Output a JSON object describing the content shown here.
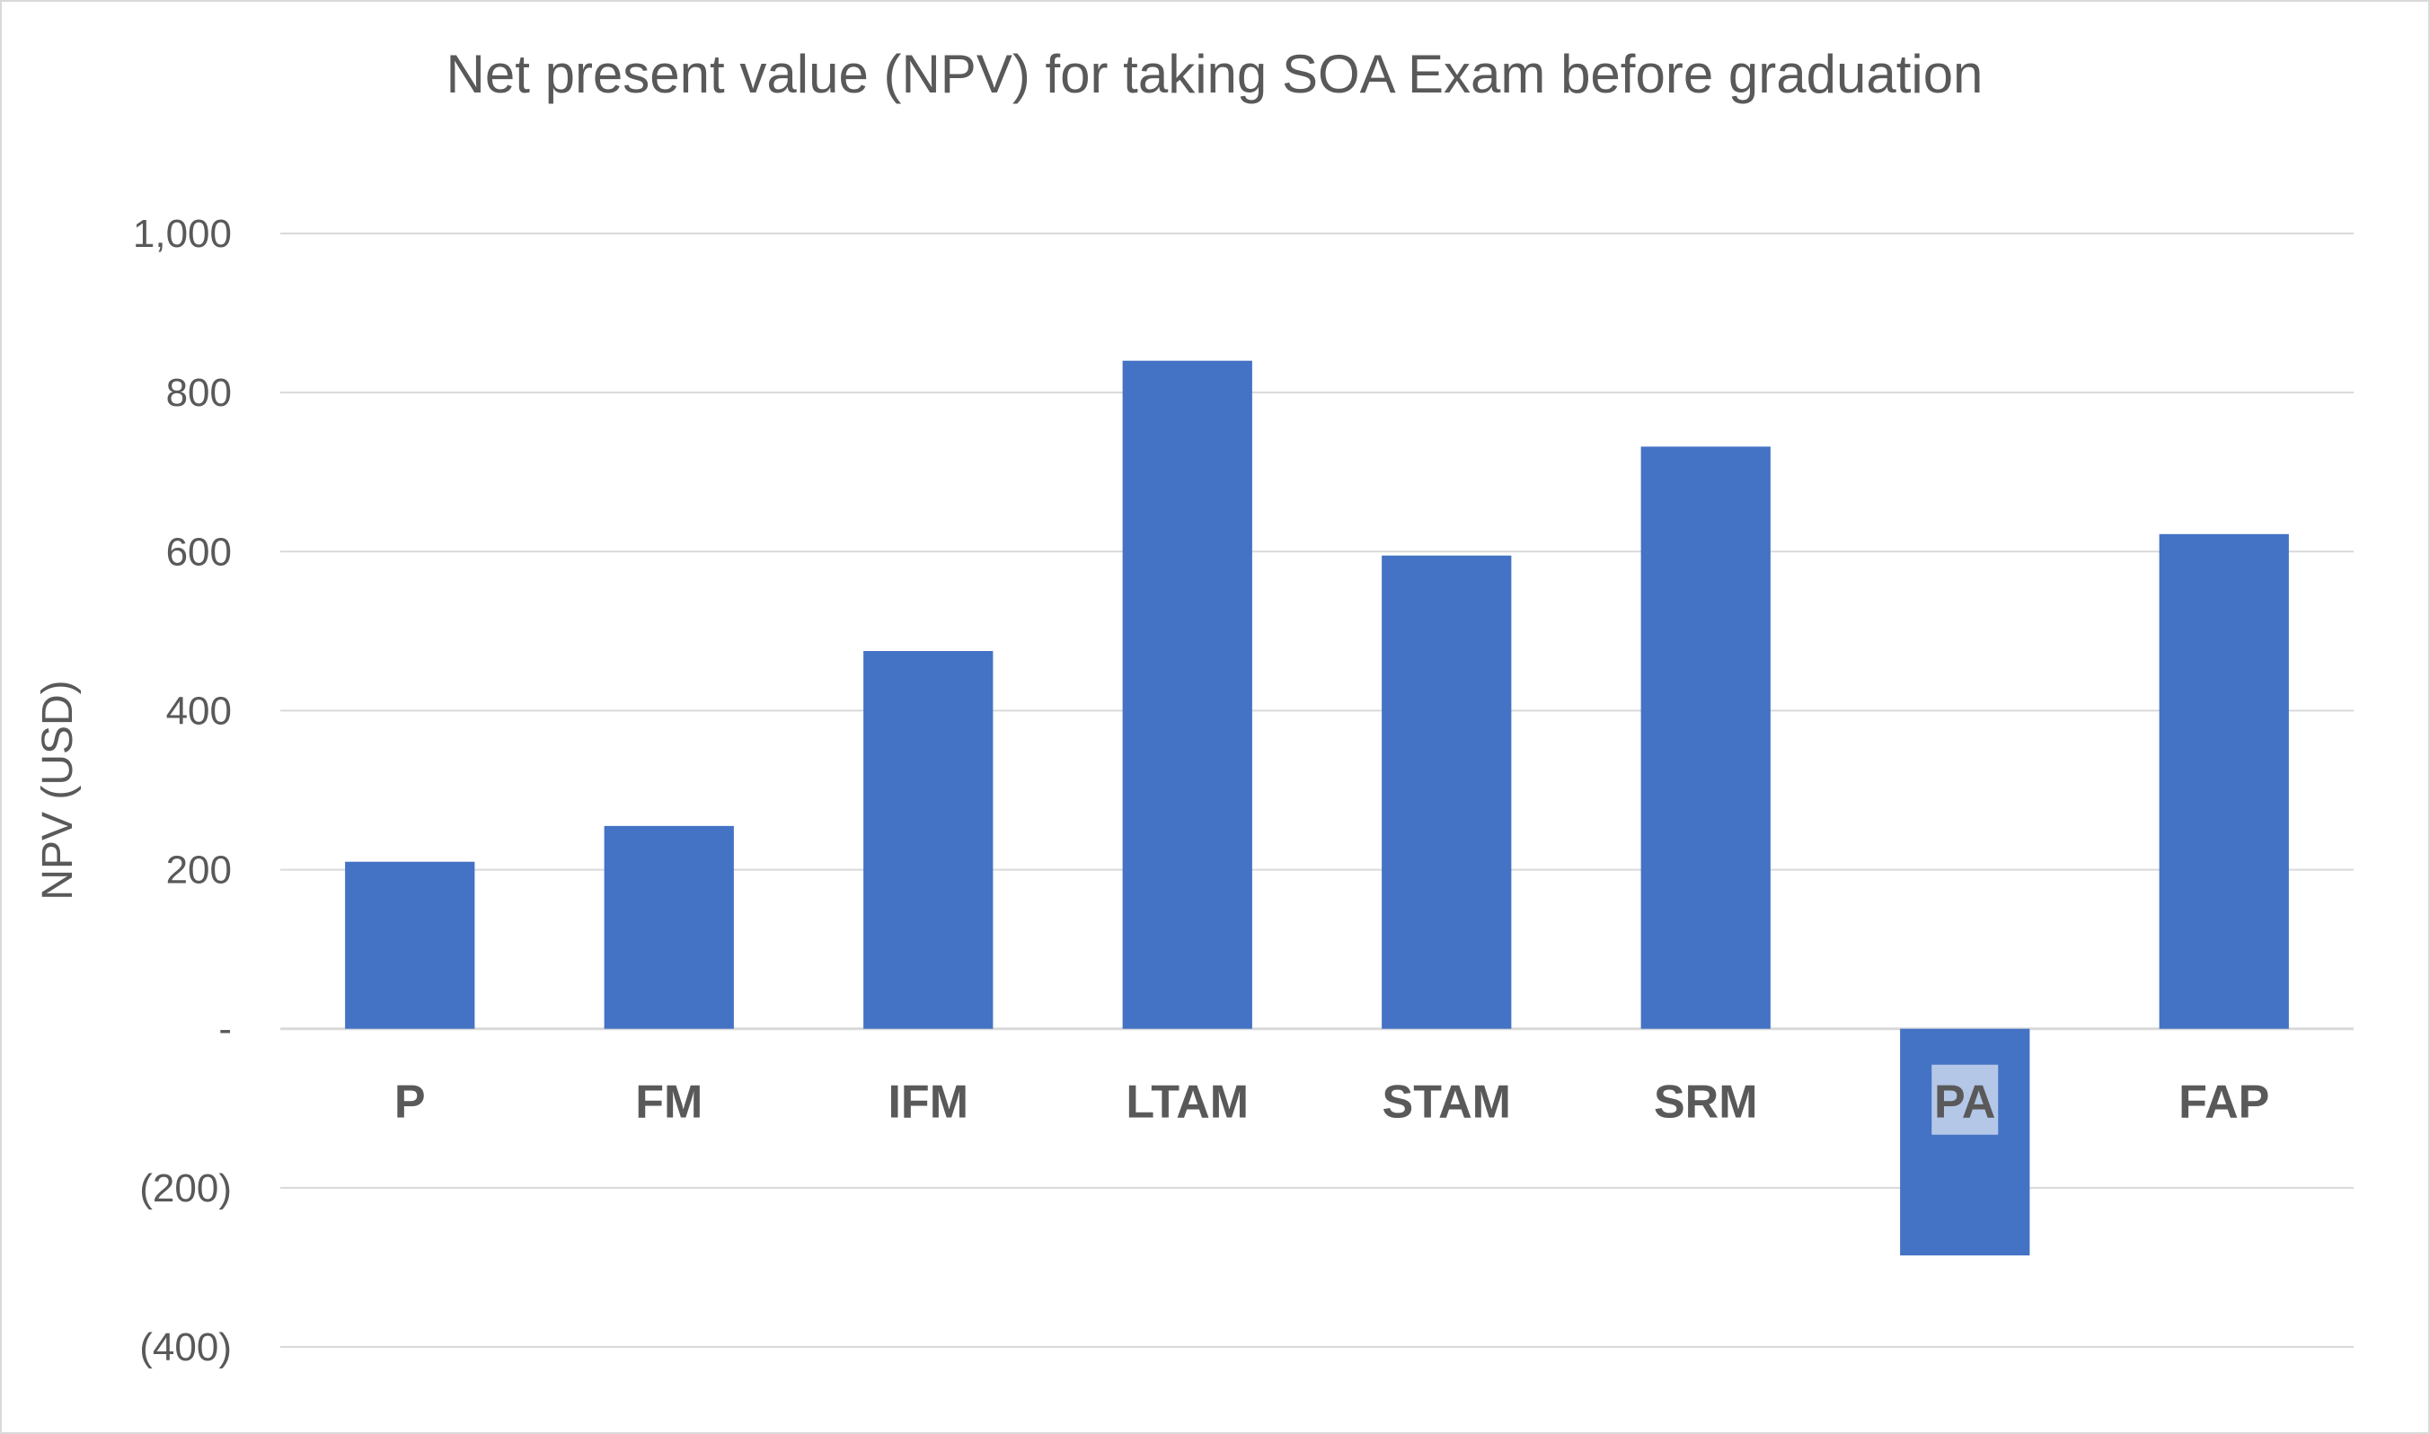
{
  "chart_data": {
    "type": "bar",
    "title": "Net present value (NPV) for taking SOA Exam before graduation",
    "xlabel": "",
    "ylabel": "NPV (USD)",
    "categories": [
      "P",
      "FM",
      "IFM",
      "LTAM",
      "STAM",
      "SRM",
      "PA",
      "FAP"
    ],
    "values": [
      210,
      255,
      475,
      840,
      595,
      732,
      -285,
      622
    ],
    "ylim": [
      -400,
      1000
    ],
    "yticks": [
      -400,
      -200,
      0,
      200,
      400,
      600,
      800,
      1000
    ],
    "ytick_labels": [
      "(400)",
      "(200)",
      "-",
      "200",
      "400",
      "600",
      "800",
      "1,000"
    ],
    "grid": true,
    "legend": "none",
    "highlighted_category": "PA",
    "colors": {
      "bar": "#4472c4",
      "text": "#595959",
      "grid": "#d9d9d9",
      "highlight": "#b4c7e7"
    }
  }
}
